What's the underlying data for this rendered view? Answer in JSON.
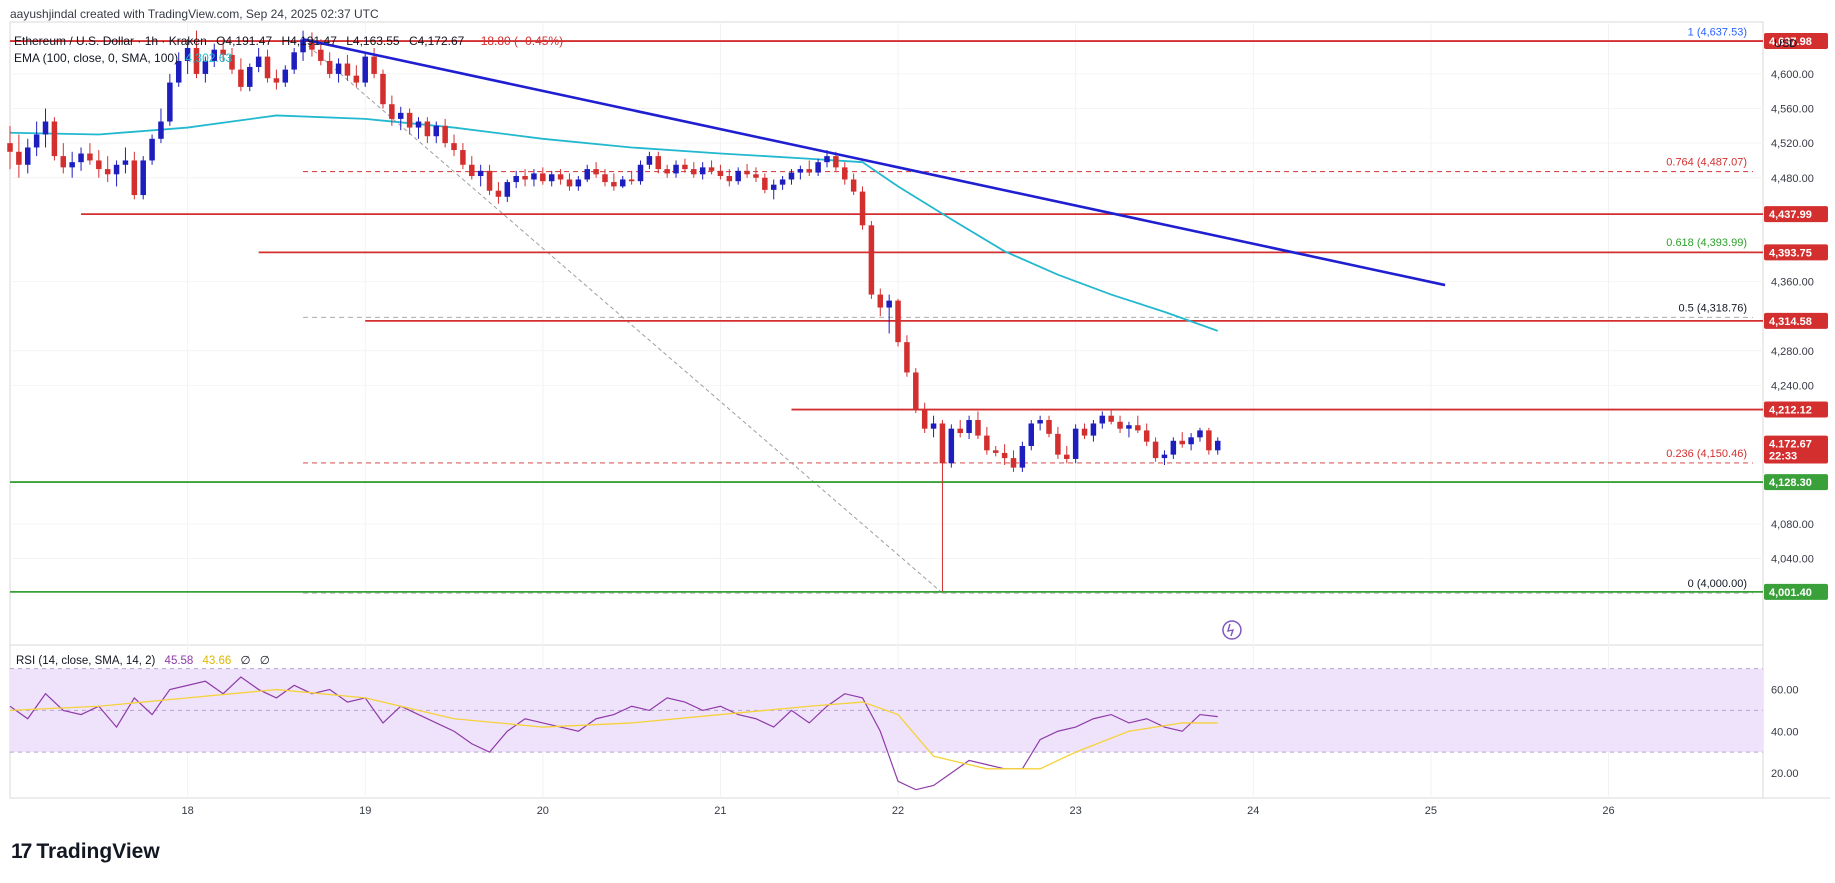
{
  "header": {
    "attribution": "aayushjindal created with TradingView.com, Sep 24, 2025 02:37 UTC",
    "symbol": "Ethereum / U.S. Dollar · 1h · Kraken",
    "open": "O4,191.47",
    "high": "H4,191.47",
    "low": "L4,163.55",
    "close": "C4,172.67",
    "change": "−18.80 (−0.45%)",
    "ema_label": "EMA (100, close, 0, SMA, 100)",
    "ema_value": "4,302.63",
    "currency": "USD"
  },
  "rsi_header": {
    "label": "RSI (14, close, SMA, 14, 2)",
    "value": "45.58",
    "ma_value": "43.66",
    "extra1": "∅",
    "extra2": "∅"
  },
  "brand": {
    "name": "TradingView",
    "logo": "17"
  },
  "colors": {
    "up": "#1e1ebf",
    "down": "#d32f2f",
    "ema": "#22b8cf",
    "trendline": "#1f1fd1",
    "support": "#3aa03a",
    "rsi_line": "#8e3ba8",
    "rsi_ma": "#f5d23a",
    "rsi_band": "#efe3fb"
  },
  "chart_data": {
    "type": "candlestick",
    "title": "Ethereum / U.S. Dollar · 1h · Kraken",
    "ylim": [
      3940,
      4660
    ],
    "price_ticks": [
      "4,600.00",
      "4,560.00",
      "4,520.00",
      "4,480.00",
      "4,360.00",
      "4,280.00",
      "4,240.00",
      "4,080.00",
      "4,040.00"
    ],
    "x_ticks": [
      "18",
      "19",
      "20",
      "21",
      "22",
      "23",
      "24",
      "25",
      "26"
    ],
    "price_labels": [
      {
        "text": "4,637.98",
        "y": 4637.98,
        "color": "#d32f2f"
      },
      {
        "text": "4,437.99",
        "y": 4437.99,
        "color": "#d32f2f"
      },
      {
        "text": "4,393.75",
        "y": 4393.75,
        "color": "#d32f2f"
      },
      {
        "text": "4,314.58",
        "y": 4314.58,
        "color": "#d32f2f"
      },
      {
        "text": "4,212.12",
        "y": 4212.12,
        "color": "#d32f2f"
      },
      {
        "text": "4,172.67",
        "y": 4172.67,
        "color": "#d32f2f"
      },
      {
        "text": "22:33",
        "y": 4159,
        "color": "#d32f2f"
      },
      {
        "text": "4,128.30",
        "y": 4128.3,
        "color": "#3aa03a"
      },
      {
        "text": "4,001.40",
        "y": 4001.4,
        "color": "#3aa03a"
      }
    ],
    "fib_levels": [
      {
        "label": "1 (4,637.53)",
        "y": 4637.53,
        "color": "#2962ff"
      },
      {
        "label": "0.764 (4,487.07)",
        "y": 4487.07,
        "color": "#d32f2f"
      },
      {
        "label": "0.618 (4,393.99)",
        "y": 4393.99,
        "color": "#2ca02c"
      },
      {
        "label": "0.5 (4,318.76)",
        "y": 4318.76,
        "color": "#131722"
      },
      {
        "label": "0.236 (4,150.46)",
        "y": 4150.46,
        "color": "#d32f2f"
      },
      {
        "label": "0 (4,000.00)",
        "y": 4000.0,
        "color": "#131722"
      }
    ],
    "horizontal_levels": [
      {
        "y": 4637.98,
        "x0": 17.0,
        "color": "#d32f2f"
      },
      {
        "y": 4437.99,
        "x0": 17.4,
        "color": "#d32f2f"
      },
      {
        "y": 4393.75,
        "x0": 18.4,
        "color": "#d32f2f"
      },
      {
        "y": 4314.58,
        "x0": 19.0,
        "color": "#d32f2f"
      },
      {
        "y": 4212.12,
        "x0": 21.4,
        "color": "#d32f2f"
      },
      {
        "y": 4128.3,
        "x0": 17.0,
        "color": "#3aa03a"
      },
      {
        "y": 4001.4,
        "x0": 17.0,
        "color": "#3aa03a"
      }
    ],
    "trendline": {
      "x": [
        18.65,
        25.08
      ],
      "y": [
        4640,
        4356
      ]
    },
    "fib_diagonal": {
      "x": [
        18.65,
        22.25
      ],
      "y": [
        4637.5,
        4000
      ]
    },
    "ohlc": [
      [
        17.0,
        4520,
        4540,
        4490,
        4510
      ],
      [
        17.05,
        4510,
        4530,
        4480,
        4495
      ],
      [
        17.1,
        4495,
        4525,
        4485,
        4515
      ],
      [
        17.15,
        4515,
        4545,
        4505,
        4530
      ],
      [
        17.2,
        4530,
        4560,
        4515,
        4545
      ],
      [
        17.25,
        4545,
        4550,
        4500,
        4505
      ],
      [
        17.3,
        4505,
        4520,
        4485,
        4492
      ],
      [
        17.35,
        4492,
        4510,
        4480,
        4498
      ],
      [
        17.4,
        4498,
        4515,
        4488,
        4508
      ],
      [
        17.45,
        4508,
        4520,
        4495,
        4500
      ],
      [
        17.5,
        4500,
        4512,
        4480,
        4490
      ],
      [
        17.55,
        4490,
        4505,
        4475,
        4484
      ],
      [
        17.6,
        4484,
        4500,
        4470,
        4495
      ],
      [
        17.65,
        4495,
        4515,
        4485,
        4500
      ],
      [
        17.7,
        4500,
        4510,
        4455,
        4460
      ],
      [
        17.75,
        4460,
        4505,
        4455,
        4500
      ],
      [
        17.8,
        4500,
        4530,
        4495,
        4525
      ],
      [
        17.85,
        4525,
        4560,
        4520,
        4545
      ],
      [
        17.9,
        4545,
        4600,
        4540,
        4590
      ],
      [
        17.95,
        4590,
        4625,
        4585,
        4615
      ],
      [
        18.0,
        4615,
        4640,
        4600,
        4630
      ],
      [
        18.05,
        4630,
        4650,
        4595,
        4600
      ],
      [
        18.1,
        4600,
        4620,
        4590,
        4615
      ],
      [
        18.15,
        4615,
        4635,
        4608,
        4628
      ],
      [
        18.2,
        4628,
        4640,
        4615,
        4622
      ],
      [
        18.25,
        4622,
        4630,
        4600,
        4605
      ],
      [
        18.3,
        4605,
        4618,
        4580,
        4585
      ],
      [
        18.35,
        4585,
        4612,
        4580,
        4608
      ],
      [
        18.4,
        4608,
        4630,
        4602,
        4620
      ],
      [
        18.45,
        4620,
        4628,
        4590,
        4595
      ],
      [
        18.5,
        4595,
        4605,
        4582,
        4590
      ],
      [
        18.55,
        4590,
        4610,
        4585,
        4605
      ],
      [
        18.6,
        4605,
        4630,
        4600,
        4625
      ],
      [
        18.65,
        4625,
        4650,
        4615,
        4640
      ],
      [
        18.7,
        4640,
        4648,
        4620,
        4628
      ],
      [
        18.75,
        4628,
        4640,
        4610,
        4615
      ],
      [
        18.8,
        4615,
        4625,
        4595,
        4600
      ],
      [
        18.85,
        4600,
        4618,
        4590,
        4612
      ],
      [
        18.9,
        4612,
        4622,
        4592,
        4598
      ],
      [
        18.95,
        4598,
        4610,
        4585,
        4590
      ],
      [
        19.0,
        4590,
        4625,
        4585,
        4620
      ],
      [
        19.05,
        4620,
        4630,
        4595,
        4600
      ],
      [
        19.1,
        4600,
        4605,
        4560,
        4565
      ],
      [
        19.15,
        4565,
        4575,
        4540,
        4548
      ],
      [
        19.2,
        4548,
        4562,
        4535,
        4555
      ],
      [
        19.25,
        4555,
        4560,
        4530,
        4538
      ],
      [
        19.3,
        4538,
        4550,
        4525,
        4545
      ],
      [
        19.35,
        4545,
        4550,
        4520,
        4528
      ],
      [
        19.4,
        4528,
        4545,
        4520,
        4540
      ],
      [
        19.45,
        4540,
        4548,
        4515,
        4520
      ],
      [
        19.5,
        4520,
        4530,
        4505,
        4512
      ],
      [
        19.55,
        4512,
        4520,
        4490,
        4495
      ],
      [
        19.6,
        4495,
        4505,
        4478,
        4482
      ],
      [
        19.65,
        4482,
        4495,
        4470,
        4488
      ],
      [
        19.7,
        4488,
        4495,
        4460,
        4465
      ],
      [
        19.75,
        4465,
        4475,
        4450,
        4458
      ],
      [
        19.8,
        4458,
        4478,
        4452,
        4475
      ],
      [
        19.85,
        4475,
        4488,
        4468,
        4482
      ],
      [
        19.9,
        4482,
        4490,
        4470,
        4478
      ],
      [
        19.95,
        4478,
        4490,
        4470,
        4485
      ],
      [
        20.0,
        4485,
        4492,
        4472,
        4476
      ],
      [
        20.05,
        4476,
        4488,
        4470,
        4484
      ],
      [
        20.1,
        4484,
        4490,
        4472,
        4478
      ],
      [
        20.15,
        4478,
        4485,
        4465,
        4470
      ],
      [
        20.2,
        4470,
        4482,
        4465,
        4478
      ],
      [
        20.25,
        4478,
        4495,
        4475,
        4490
      ],
      [
        20.3,
        4490,
        4498,
        4480,
        4484
      ],
      [
        20.35,
        4484,
        4490,
        4470,
        4475
      ],
      [
        20.4,
        4475,
        4485,
        4465,
        4470
      ],
      [
        20.45,
        4470,
        4482,
        4468,
        4478
      ],
      [
        20.5,
        4478,
        4488,
        4472,
        4476
      ],
      [
        20.55,
        4476,
        4500,
        4472,
        4495
      ],
      [
        20.6,
        4495,
        4510,
        4490,
        4505
      ],
      [
        20.65,
        4505,
        4510,
        4485,
        4490
      ],
      [
        20.7,
        4490,
        4495,
        4480,
        4485
      ],
      [
        20.75,
        4485,
        4500,
        4480,
        4495
      ],
      [
        20.8,
        4495,
        4502,
        4486,
        4490
      ],
      [
        20.85,
        4490,
        4498,
        4480,
        4484
      ],
      [
        20.9,
        4484,
        4498,
        4478,
        4492
      ],
      [
        20.95,
        4492,
        4500,
        4484,
        4488
      ],
      [
        21.0,
        4488,
        4495,
        4478,
        4482
      ],
      [
        21.05,
        4482,
        4490,
        4470,
        4476
      ],
      [
        21.1,
        4476,
        4492,
        4472,
        4488
      ],
      [
        21.15,
        4488,
        4496,
        4480,
        4484
      ],
      [
        21.2,
        4484,
        4492,
        4475,
        4480
      ],
      [
        21.25,
        4480,
        4485,
        4462,
        4466
      ],
      [
        21.3,
        4466,
        4478,
        4455,
        4472
      ],
      [
        21.35,
        4472,
        4482,
        4466,
        4478
      ],
      [
        21.4,
        4478,
        4490,
        4472,
        4486
      ],
      [
        21.45,
        4486,
        4494,
        4478,
        4490
      ],
      [
        21.5,
        4490,
        4500,
        4482,
        4486
      ],
      [
        21.55,
        4486,
        4502,
        4482,
        4498
      ],
      [
        21.6,
        4498,
        4512,
        4492,
        4505
      ],
      [
        21.65,
        4505,
        4510,
        4488,
        4492
      ],
      [
        21.7,
        4492,
        4498,
        4472,
        4478
      ],
      [
        21.75,
        4478,
        4485,
        4460,
        4464
      ],
      [
        21.8,
        4464,
        4470,
        4420,
        4425
      ],
      [
        21.85,
        4425,
        4430,
        4340,
        4345
      ],
      [
        21.9,
        4345,
        4352,
        4320,
        4330
      ],
      [
        21.95,
        4330,
        4345,
        4300,
        4338
      ],
      [
        22.0,
        4338,
        4340,
        4285,
        4290
      ],
      [
        22.05,
        4290,
        4298,
        4250,
        4255
      ],
      [
        22.1,
        4255,
        4260,
        4208,
        4212
      ],
      [
        22.15,
        4212,
        4220,
        4185,
        4190
      ],
      [
        22.2,
        4190,
        4205,
        4180,
        4196
      ],
      [
        22.25,
        4196,
        4200,
        4002,
        4150
      ],
      [
        22.3,
        4150,
        4195,
        4145,
        4190
      ],
      [
        22.35,
        4190,
        4200,
        4180,
        4185
      ],
      [
        22.4,
        4185,
        4205,
        4178,
        4200
      ],
      [
        22.45,
        4200,
        4210,
        4178,
        4182
      ],
      [
        22.5,
        4182,
        4192,
        4160,
        4165
      ],
      [
        22.55,
        4165,
        4170,
        4158,
        4162
      ],
      [
        22.6,
        4162,
        4172,
        4148,
        4156
      ],
      [
        22.65,
        4156,
        4165,
        4140,
        4145
      ],
      [
        22.7,
        4145,
        4175,
        4140,
        4170
      ],
      [
        22.75,
        4170,
        4200,
        4165,
        4196
      ],
      [
        22.8,
        4196,
        4205,
        4188,
        4200
      ],
      [
        22.85,
        4200,
        4205,
        4180,
        4184
      ],
      [
        22.9,
        4184,
        4192,
        4155,
        4160
      ],
      [
        22.95,
        4160,
        4170,
        4150,
        4155
      ],
      [
        23.0,
        4155,
        4195,
        4150,
        4190
      ],
      [
        23.05,
        4190,
        4196,
        4178,
        4182
      ],
      [
        23.1,
        4182,
        4200,
        4175,
        4196
      ],
      [
        23.15,
        4196,
        4210,
        4190,
        4205
      ],
      [
        23.2,
        4205,
        4212,
        4195,
        4198
      ],
      [
        23.25,
        4198,
        4205,
        4185,
        4190
      ],
      [
        23.3,
        4190,
        4198,
        4180,
        4194
      ],
      [
        23.35,
        4194,
        4205,
        4185,
        4188
      ],
      [
        23.4,
        4188,
        4196,
        4170,
        4175
      ],
      [
        23.45,
        4175,
        4180,
        4152,
        4156
      ],
      [
        23.5,
        4156,
        4165,
        4148,
        4160
      ],
      [
        23.55,
        4160,
        4180,
        4155,
        4176
      ],
      [
        23.6,
        4176,
        4186,
        4168,
        4172
      ],
      [
        23.65,
        4172,
        4185,
        4165,
        4180
      ],
      [
        23.7,
        4180,
        4191,
        4175,
        4188
      ],
      [
        23.75,
        4188,
        4191,
        4160,
        4165
      ],
      [
        23.8,
        4165,
        4180,
        4160,
        4176
      ]
    ],
    "ema": {
      "x": [
        17.0,
        17.5,
        18.0,
        18.5,
        19.0,
        19.5,
        20.0,
        20.5,
        21.0,
        21.5,
        21.8,
        22.0,
        22.3,
        22.6,
        22.9,
        23.2,
        23.5,
        23.8
      ],
      "y": [
        4532,
        4530,
        4538,
        4552,
        4548,
        4538,
        4525,
        4515,
        4508,
        4502,
        4498,
        4470,
        4432,
        4395,
        4368,
        4345,
        4325,
        4303
      ]
    },
    "rsi": {
      "ylim": [
        8,
        78
      ],
      "ticks": [
        "60.00",
        "40.00",
        "20.00"
      ],
      "band": [
        30,
        70
      ],
      "dashed": [
        30,
        50,
        70
      ],
      "x": [
        17.0,
        17.1,
        17.2,
        17.3,
        17.4,
        17.5,
        17.6,
        17.7,
        17.8,
        17.9,
        18.0,
        18.1,
        18.2,
        18.3,
        18.4,
        18.5,
        18.6,
        18.7,
        18.8,
        18.9,
        19.0,
        19.1,
        19.2,
        19.3,
        19.4,
        19.5,
        19.6,
        19.7,
        19.8,
        19.9,
        20.0,
        20.1,
        20.2,
        20.3,
        20.4,
        20.5,
        20.6,
        20.7,
        20.8,
        20.9,
        21.0,
        21.1,
        21.2,
        21.3,
        21.4,
        21.5,
        21.6,
        21.7,
        21.8,
        21.9,
        22.0,
        22.1,
        22.2,
        22.3,
        22.4,
        22.5,
        22.6,
        22.7,
        22.8,
        22.9,
        23.0,
        23.1,
        23.2,
        23.3,
        23.4,
        23.5,
        23.6,
        23.7,
        23.8
      ],
      "y": [
        52,
        46,
        58,
        50,
        48,
        52,
        42,
        56,
        48,
        60,
        62,
        64,
        58,
        66,
        60,
        56,
        62,
        58,
        60,
        54,
        56,
        44,
        52,
        48,
        44,
        40,
        34,
        30,
        40,
        46,
        44,
        42,
        40,
        46,
        48,
        52,
        50,
        56,
        54,
        50,
        52,
        48,
        46,
        42,
        50,
        44,
        52,
        58,
        56,
        40,
        16,
        12,
        14,
        20,
        26,
        24,
        22,
        22,
        36,
        40,
        42,
        46,
        48,
        44,
        46,
        42,
        40,
        48,
        47
      ],
      "ma_x": [
        17.0,
        17.5,
        18.0,
        18.5,
        19.0,
        19.5,
        20.0,
        20.5,
        21.0,
        21.5,
        21.8,
        22.0,
        22.2,
        22.5,
        22.8,
        23.0,
        23.3,
        23.6,
        23.8
      ],
      "ma_y": [
        50,
        52,
        56,
        60,
        56,
        46,
        42,
        44,
        48,
        52,
        54,
        48,
        28,
        22,
        22,
        30,
        40,
        44,
        44
      ]
    }
  }
}
